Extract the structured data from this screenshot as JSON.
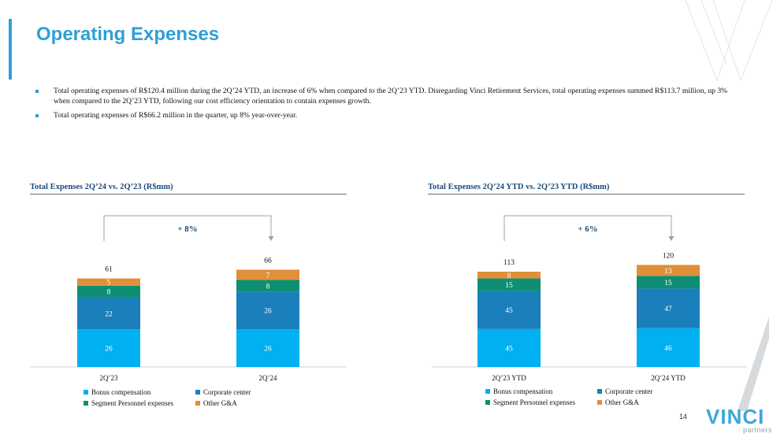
{
  "page": {
    "title": "Operating Expenses",
    "page_number": "14",
    "bullets": [
      "Total operating expenses of R$120.4 million during the 2Q’24 YTD, an increase of 6% when compared to the 2Q’23 YTD. Disregarding Vinci Retirement Services, total operating expenses summed R$113.7 million, up 3% when compared to the 2Q’23 YTD, following our cost efficiency orientation to contain expenses growth.",
      "Total operating expenses of R$66.2 million in the quarter, up 8% year-over-year."
    ],
    "logo": {
      "word": "VINCI",
      "sub": "partners"
    }
  },
  "colors": {
    "accent": "#2e9fd6",
    "bonus": "#00b0f0",
    "corporate": "#1a7fba",
    "segment": "#0e8f73",
    "other": "#e08f3a"
  },
  "chart_data": [
    {
      "type": "bar",
      "stacked": true,
      "title": "Total Expenses 2Q’24 vs. 2Q’23 (R$mm)",
      "categories": [
        "2Q’23",
        "2Q’24"
      ],
      "series": [
        {
          "name": "Bonus compensation",
          "values": [
            26,
            26
          ]
        },
        {
          "name": "Corporate center",
          "values": [
            22,
            26
          ]
        },
        {
          "name": "Segment Personnel expenses",
          "values": [
            8,
            8
          ]
        },
        {
          "name": "Other G&A",
          "values": [
            5,
            7
          ]
        }
      ],
      "totals": [
        61,
        66
      ],
      "growth_label": "+ 8%",
      "ylim": [
        0,
        70
      ],
      "legend_position": "bottom"
    },
    {
      "type": "bar",
      "stacked": true,
      "title": "Total Expenses 2Q’24 YTD vs. 2Q’23 YTD (R$mm)",
      "categories": [
        "2Q’23 YTD",
        "2Q’24 YTD"
      ],
      "series": [
        {
          "name": "Bonus compensation",
          "values": [
            45,
            46
          ]
        },
        {
          "name": "Corporate center",
          "values": [
            45,
            47
          ]
        },
        {
          "name": "Segment Personnel expenses",
          "values": [
            15,
            15
          ]
        },
        {
          "name": "Other G&A",
          "values": [
            8,
            13
          ]
        }
      ],
      "totals": [
        113,
        120
      ],
      "growth_label": "+ 6%",
      "ylim": [
        0,
        127
      ],
      "legend_position": "bottom"
    }
  ]
}
